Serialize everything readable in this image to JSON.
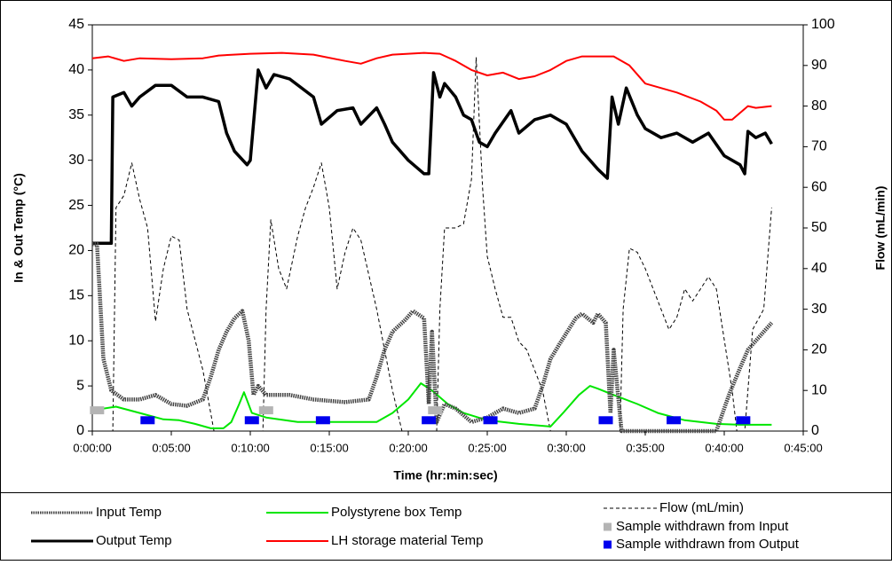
{
  "chart_data": {
    "type": "line",
    "xlabel": "Time (hr:min:sec)",
    "ylabel": "In & Out Temp (°C)",
    "y2label": "Flow (mL/min)",
    "xlim": [
      0,
      45
    ],
    "xticks": [
      {
        "value": 0,
        "label": "0:00:00"
      },
      {
        "value": 5,
        "label": "0:05:00"
      },
      {
        "value": 10,
        "label": "0:10:00"
      },
      {
        "value": 15,
        "label": "0:15:00"
      },
      {
        "value": 20,
        "label": "0:20:00"
      },
      {
        "value": 25,
        "label": "0:25:00"
      },
      {
        "value": 30,
        "label": "0:30:00"
      },
      {
        "value": 35,
        "label": "0:35:00"
      },
      {
        "value": 40,
        "label": "0:40:00"
      },
      {
        "value": 45,
        "label": "0:45:00"
      }
    ],
    "ylim": [
      0,
      45
    ],
    "yticks": [
      0,
      5,
      10,
      15,
      20,
      25,
      30,
      35,
      40,
      45
    ],
    "y2lim": [
      0,
      100
    ],
    "y2ticks": [
      0,
      10,
      20,
      30,
      40,
      50,
      60,
      70,
      80,
      90,
      100
    ],
    "series": [
      {
        "name": "Input Temp",
        "color": "#444444",
        "style": "dotted",
        "x": [
          0,
          0.3,
          0.7,
          1.2,
          2,
          3,
          4,
          5,
          6,
          7,
          7.5,
          8,
          8.5,
          9,
          9.5,
          9.9,
          10.2,
          10.5,
          11,
          12.5,
          14,
          16,
          17.5,
          18,
          18.5,
          19,
          19.8,
          20.3,
          21,
          21.3,
          21.5,
          21.8,
          22.3,
          23,
          24,
          25,
          26,
          27,
          28,
          28.5,
          29,
          29.7,
          30.6,
          31,
          31.7,
          32,
          32.5,
          32.8,
          33,
          33.5,
          35,
          37,
          39,
          39.5,
          40.3,
          41,
          41.5,
          42.5,
          43
        ],
        "values": [
          20.7,
          20.7,
          8,
          4.5,
          3.5,
          3.5,
          4,
          3,
          2.8,
          3.5,
          6,
          9,
          11,
          12.5,
          13.3,
          10,
          4,
          5,
          4,
          4,
          3.5,
          3.2,
          3.5,
          6,
          9,
          11,
          12.3,
          13.3,
          12.5,
          3,
          11,
          1,
          3,
          2.5,
          1,
          1.5,
          2.5,
          2,
          2.5,
          5,
          8,
          10,
          12.5,
          13,
          12,
          13,
          12,
          2,
          9,
          0,
          0,
          0,
          0,
          0,
          4,
          7,
          9,
          11,
          12
        ]
      },
      {
        "name": "Output Temp",
        "color": "#000000",
        "style": "solid",
        "x": [
          0,
          1.2,
          1.3,
          2,
          2.5,
          3,
          4,
          5,
          6,
          7,
          8,
          8.5,
          9,
          9.8,
          10,
          10.5,
          11,
          11.5,
          12.5,
          14,
          14.5,
          15.5,
          16.5,
          17,
          18,
          18.5,
          19,
          20,
          21,
          21.3,
          21.6,
          22,
          22.3,
          23,
          23.5,
          24,
          24.5,
          25,
          25.5,
          26.5,
          27,
          28,
          29,
          30,
          31,
          32,
          32.6,
          32.9,
          33.3,
          33.8,
          34.5,
          35,
          36,
          37,
          38,
          39,
          40,
          41,
          41.3,
          41.5,
          42,
          42.6,
          43
        ],
        "values": [
          20.8,
          20.8,
          37,
          37.5,
          36,
          37,
          38.3,
          38.3,
          37,
          37,
          36.5,
          33,
          31,
          29.5,
          30,
          40,
          38,
          39.5,
          39,
          37,
          34,
          35.5,
          35.8,
          34,
          35.8,
          34,
          32,
          30,
          28.5,
          28.5,
          39.7,
          37,
          38.5,
          37,
          35,
          34.5,
          32,
          31.5,
          33,
          35.5,
          33,
          34.5,
          35,
          34,
          31,
          29,
          28,
          37,
          34,
          38,
          35,
          33.5,
          32.5,
          33,
          32,
          33,
          30.5,
          29.5,
          28.5,
          33.2,
          32.5,
          33,
          31.8
        ]
      },
      {
        "name": "Polystyrene box Temp",
        "color": "#00e600",
        "style": "thin",
        "x": [
          0,
          1.5,
          3,
          4.5,
          5.5,
          6.5,
          7.5,
          8.3,
          8.8,
          9.3,
          9.6,
          10.1,
          11,
          13,
          15,
          17,
          18,
          19,
          20,
          20.8,
          21.5,
          22.5,
          23.5,
          25,
          27,
          29,
          29.8,
          30.8,
          31.5,
          32,
          33,
          34.5,
          35.8,
          37.5,
          39.5,
          41,
          43
        ],
        "values": [
          2.3,
          2.7,
          2,
          1.3,
          1.2,
          0.8,
          0.3,
          0.3,
          1,
          3,
          4.3,
          2,
          1.5,
          1,
          1,
          1,
          1,
          2,
          3.5,
          5.3,
          4.5,
          3,
          2,
          1.2,
          0.8,
          0.5,
          2,
          4,
          5,
          4.7,
          4,
          3,
          2,
          1.2,
          0.8,
          0.7,
          0.7
        ]
      },
      {
        "name": "LH storage material Temp",
        "color": "#ff0000",
        "style": "thin",
        "x": [
          0,
          1,
          2,
          3,
          5,
          7,
          8,
          10,
          12,
          14,
          16,
          17,
          18,
          19,
          21,
          22,
          23,
          24,
          25,
          26,
          27,
          28,
          29,
          30,
          31,
          33,
          34,
          35,
          37,
          38.5,
          39.5,
          40,
          40.5,
          41.5,
          42,
          43
        ],
        "values": [
          41.3,
          41.5,
          41,
          41.3,
          41.2,
          41.3,
          41.6,
          41.8,
          41.9,
          41.7,
          41,
          40.7,
          41.3,
          41.7,
          41.9,
          41.8,
          41,
          40,
          39.4,
          39.7,
          39,
          39.3,
          40,
          41,
          41.5,
          41.5,
          40.5,
          38.5,
          37.5,
          36.5,
          35.5,
          34.5,
          34.5,
          36,
          35.8,
          36
        ]
      },
      {
        "name": "Flow (mL/min)",
        "color": "#000000",
        "style": "dashed",
        "axis": "y2",
        "x": [
          0,
          1.3,
          1.5,
          2,
          2.5,
          3,
          3.5,
          4,
          4.5,
          5,
          5.5,
          6,
          7,
          7.7,
          9.5,
          10.8,
          11,
          11.3,
          11.8,
          12.3,
          13,
          13.5,
          14,
          14.5,
          15,
          15.5,
          16,
          16.5,
          17,
          18,
          19,
          19.6,
          21.8,
          22,
          22.3,
          23,
          23.5,
          24,
          24.3,
          24.7,
          25,
          25.5,
          26,
          26.5,
          27,
          27.5,
          28.5,
          29,
          33.4,
          33.6,
          34,
          34.5,
          35,
          35.5,
          36.5,
          37,
          37.5,
          38,
          39,
          39.5,
          40.5,
          40.8,
          41.3,
          41.8,
          42.5,
          43
        ],
        "values": [
          0,
          0,
          55,
          58,
          66,
          57,
          50,
          27,
          40,
          48,
          47,
          30,
          15,
          0,
          0,
          0,
          30,
          52,
          40,
          35,
          48,
          55,
          60,
          66,
          55,
          35,
          44,
          50,
          47,
          30,
          10,
          0,
          0,
          30,
          50,
          50,
          51,
          62,
          92,
          60,
          43,
          35,
          28,
          28,
          22,
          20,
          10,
          0,
          0,
          30,
          45,
          44,
          40,
          35,
          25,
          28,
          35,
          32,
          38,
          35,
          10,
          0,
          0,
          25,
          30,
          55
        ]
      },
      {
        "name": "Sample withdrawn from Input",
        "color": "#b4b4b4",
        "style": "markers",
        "x": [
          0.3,
          11,
          21.7
        ],
        "values": [
          2.3,
          2.3,
          2.3
        ]
      },
      {
        "name": "Sample withdrawn from Output",
        "color": "#0000ee",
        "style": "markers",
        "x": [
          3.5,
          10.1,
          14.6,
          21.3,
          25.2,
          32.5,
          36.8,
          41.2
        ],
        "values": [
          1.2,
          1.2,
          1.2,
          1.2,
          1.2,
          1.2,
          1.2,
          1.2
        ]
      }
    ]
  }
}
